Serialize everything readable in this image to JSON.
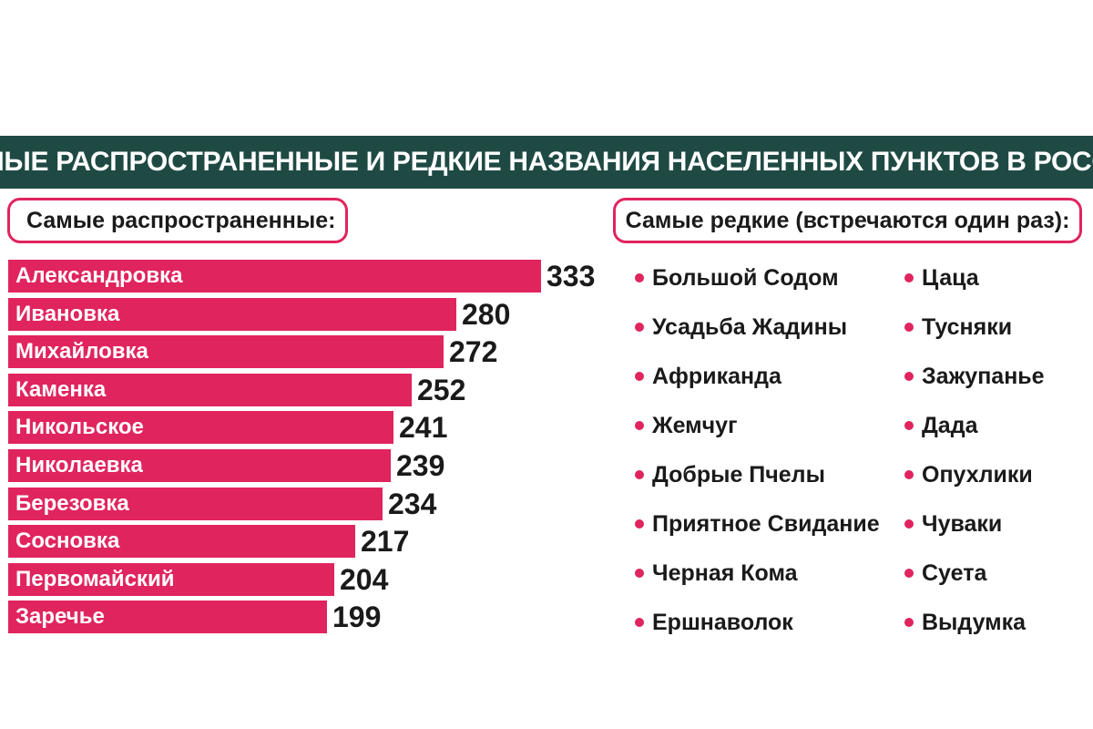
{
  "title": "САМЫЕ РАСПРОСТРАНЕННЫЕ И РЕДКИЕ НАЗВАНИЯ НАСЕЛЕННЫХ ПУНКТОВ В РОССИИ",
  "common_header": "Самые распространенные:",
  "rare_header": "Самые редкие (встречаются один раз):",
  "colors": {
    "accent": "#e0245e",
    "banner": "#1f4a44"
  },
  "chart_data": {
    "type": "bar",
    "orientation": "horizontal",
    "categories": [
      "Александровка",
      "Ивановка",
      "Михайловка",
      "Каменка",
      "Никольское",
      "Николаевка",
      "Березовка",
      "Сосновка",
      "Первомайский",
      "Заречье"
    ],
    "values": [
      333,
      280,
      272,
      252,
      241,
      239,
      234,
      217,
      204,
      199
    ],
    "grid": false
  },
  "rare": {
    "col1": [
      "Большой Содом",
      "Усадьба Жадины",
      "Африканда",
      "Жемчуг",
      "Добрые Пчелы",
      "Приятное Свидание",
      "Черная Кома",
      "Ершнаволок"
    ],
    "col2": [
      "Цаца",
      "Тусняки",
      "Зажупанье",
      "Дада",
      "Опухлики",
      "Чуваки",
      "Суета",
      "Выдумка"
    ]
  }
}
